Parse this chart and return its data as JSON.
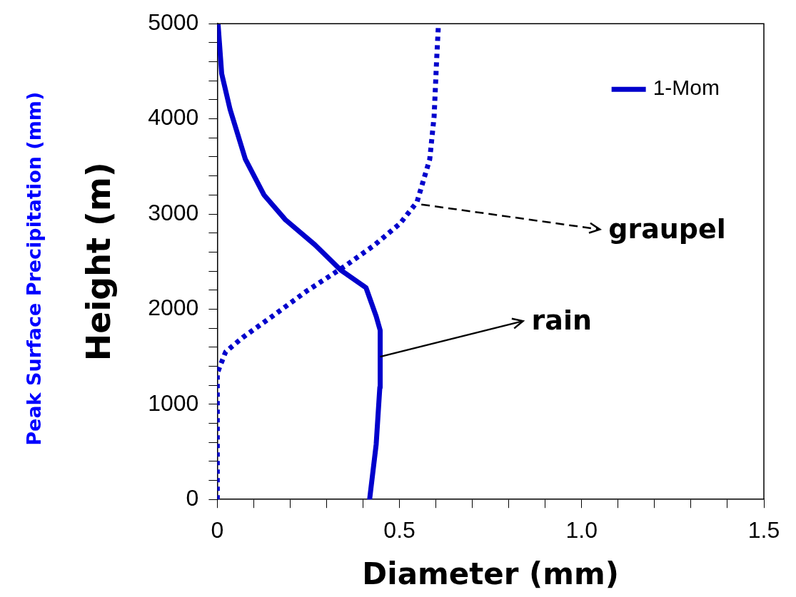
{
  "chart_data": {
    "type": "line",
    "xlabel": "Diameter (mm)",
    "ylabel": "Height (m)",
    "series": [
      {
        "name": "1-Mom",
        "color": "#0000cc",
        "line_style": "solid",
        "x": [
          0.418,
          0.436,
          0.446,
          0.447,
          0.436,
          0.408,
          0.338,
          0.268,
          0.187,
          0.128,
          0.077,
          0.035,
          0.012,
          0.002
        ],
        "values": [
          0,
          578,
          1177,
          1777,
          1925,
          2226,
          2413,
          2676,
          2939,
          3201,
          3576,
          4100,
          4475,
          5000
        ]
      },
      {
        "color": "#0000cc",
        "line_style": "dotted",
        "x": [
          0,
          0,
          0,
          0.023,
          0.07,
          0.152,
          0.245,
          0.35,
          0.432,
          0.502,
          0.548,
          0.583,
          0.595,
          0.602,
          0.607
        ],
        "values": [
          0,
          950,
          1327,
          1552,
          1702,
          1927,
          2189,
          2451,
          2676,
          2901,
          3126,
          3576,
          4025,
          4625,
          5000
        ]
      }
    ],
    "xlim": [
      0,
      1.5
    ],
    "xticks": [
      0,
      {
        "value": 0.1,
        "label": null
      },
      {
        "value": 0.2,
        "label": null
      },
      {
        "value": 0.3,
        "label": null
      },
      {
        "value": 0.4,
        "label": null
      },
      0.5,
      {
        "value": 0.6,
        "label": null
      },
      {
        "value": 0.7,
        "label": null
      },
      {
        "value": 0.8,
        "label": null
      },
      {
        "value": 0.9,
        "label": null
      },
      {
        "value": 1.0,
        "label": "1.0"
      },
      {
        "value": 1.1,
        "label": null
      },
      {
        "value": 1.2,
        "label": null
      },
      {
        "value": 1.3,
        "label": null
      },
      {
        "value": 1.4,
        "label": null
      },
      1.5
    ],
    "ylim": [
      0,
      5000
    ],
    "yticks": [
      0,
      {
        "value": 200,
        "label": null
      },
      {
        "value": 400,
        "label": null
      },
      {
        "value": 600,
        "label": null
      },
      {
        "value": 800,
        "label": null
      },
      1000,
      {
        "value": 1200,
        "label": null
      },
      {
        "value": 1400,
        "label": null
      },
      {
        "value": 1600,
        "label": null
      },
      {
        "value": 1800,
        "label": null
      },
      2000,
      {
        "value": 2200,
        "label": null
      },
      {
        "value": 2400,
        "label": null
      },
      {
        "value": 2600,
        "label": null
      },
      {
        "value": 2800,
        "label": null
      },
      3000,
      {
        "value": 3200,
        "label": null
      },
      {
        "value": 3400,
        "label": null
      },
      {
        "value": 3600,
        "label": null
      },
      {
        "value": 3800,
        "label": null
      },
      4000,
      {
        "value": 4200,
        "label": null
      },
      {
        "value": 4400,
        "label": null
      },
      {
        "value": 4600,
        "label": null
      },
      {
        "value": 4800,
        "label": null
      },
      5000
    ],
    "annotations": [
      {
        "text": "graupel",
        "x": 0.56,
        "y": 3100
      },
      {
        "text": "rain",
        "x": 0.447,
        "y": 1500
      },
      "Peak Surface Precipitation (mm)"
    ],
    "grid": false,
    "legend": "top right",
    "marker": "none"
  }
}
